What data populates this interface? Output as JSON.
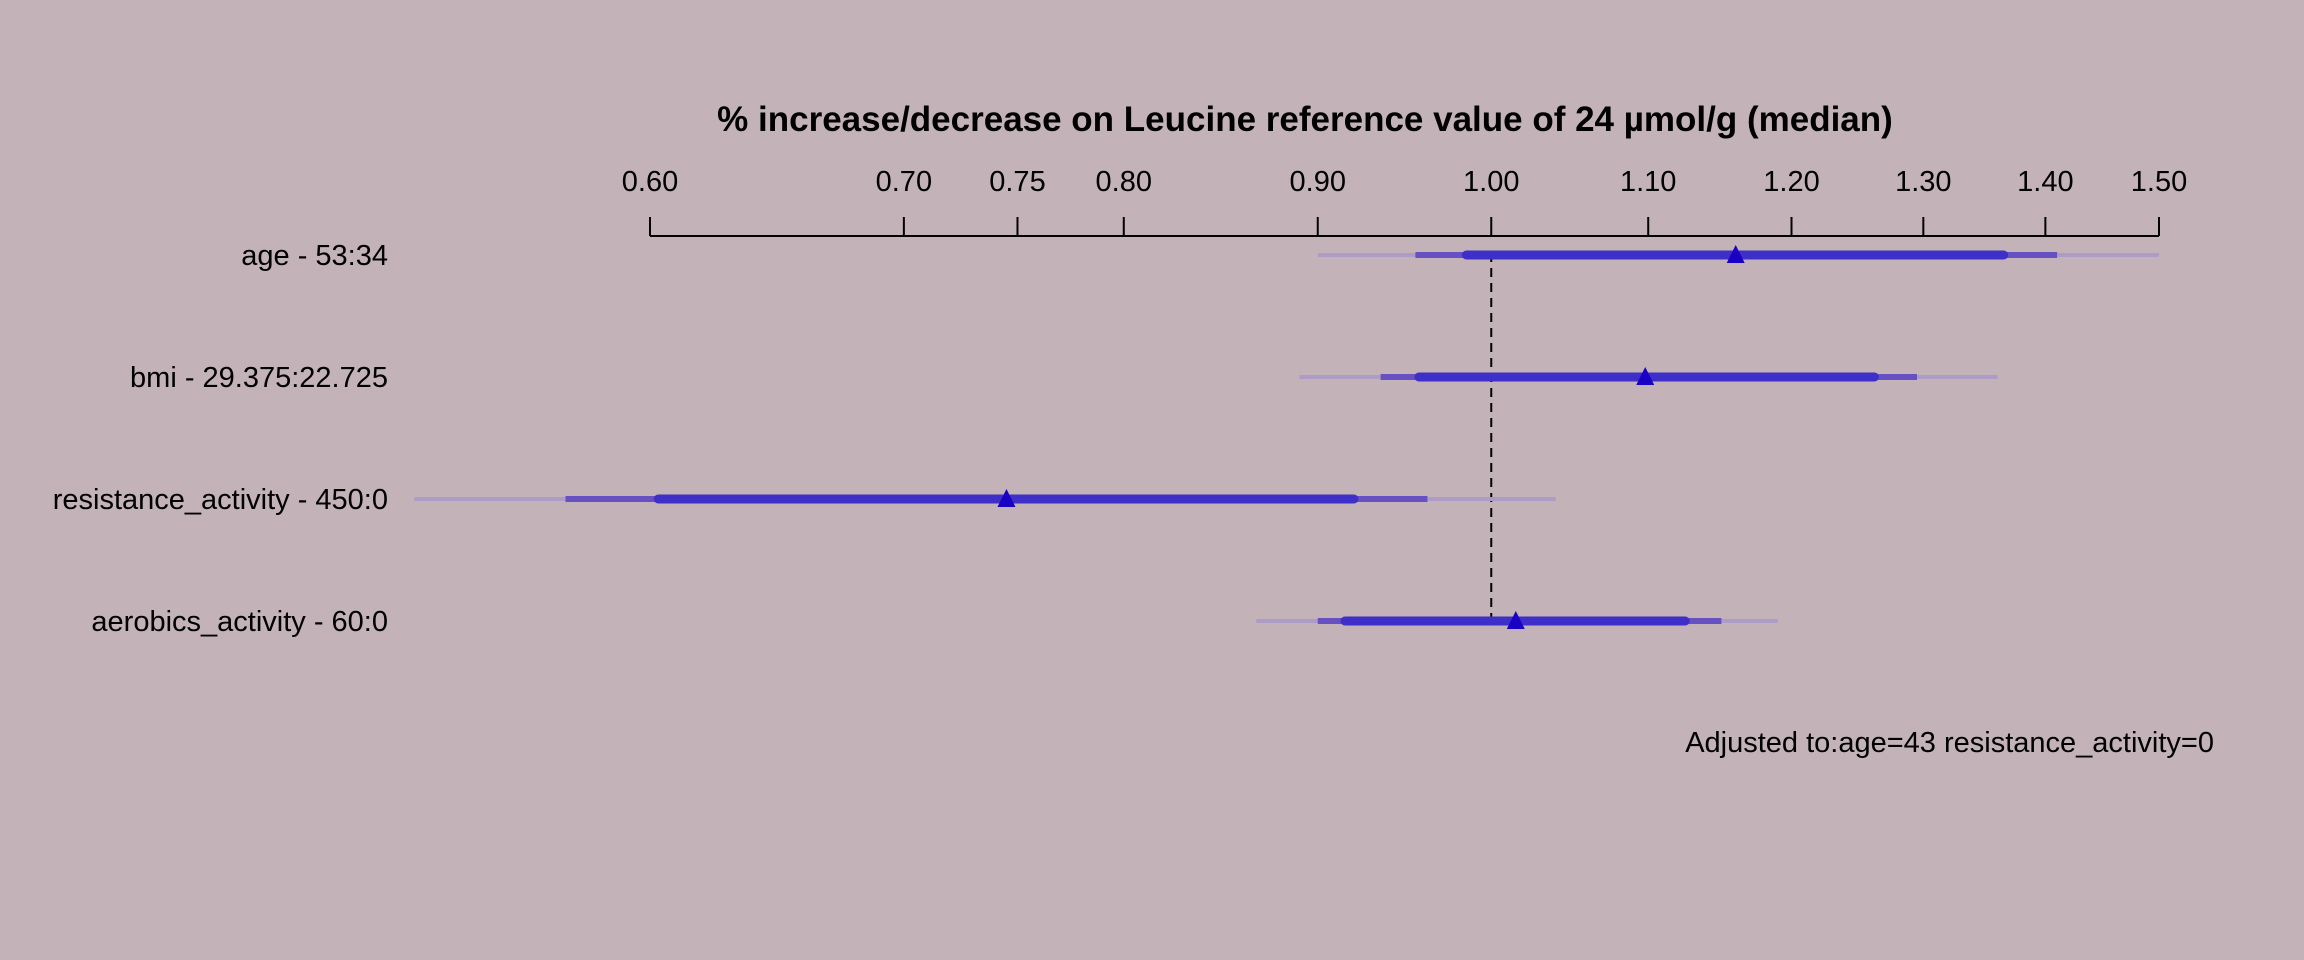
{
  "chart_data": {
    "type": "forest",
    "title": "% increase/decrease on Leucine reference value of 24 µmol/g (median)",
    "x_scale": "log",
    "xlim": [
      0.6,
      1.5
    ],
    "x_ticks": [
      0.6,
      0.7,
      0.75,
      0.8,
      0.9,
      1.0,
      1.1,
      1.2,
      1.3,
      1.4,
      1.5
    ],
    "x_tick_labels": [
      "0.60",
      "0.70",
      "0.75",
      "0.80",
      "0.90",
      "1.00",
      "1.10",
      "1.20",
      "1.30",
      "1.40",
      "1.50"
    ],
    "reference_line": 1.0,
    "colors": {
      "point": "#1a00c4",
      "inner_interval": "#3d2fc8",
      "middle_interval": "#6650c2",
      "outer_interval": "#ad9dc6",
      "reference_line": "#000000"
    },
    "rows": [
      {
        "label": "age - 53:34",
        "estimate": 1.16,
        "inner": [
          0.985,
          1.365
        ],
        "middle": [
          0.955,
          1.41
        ],
        "outer": [
          0.9,
          1.5
        ]
      },
      {
        "label": "bmi - 29.375:22.725",
        "estimate": 1.098,
        "inner": [
          0.957,
          1.262
        ],
        "middle": [
          0.935,
          1.295
        ],
        "outer": [
          0.89,
          1.36
        ]
      },
      {
        "label": "resistance_activity - 450:0",
        "estimate": 0.745,
        "inner": [
          0.603,
          0.92
        ],
        "middle": [
          0.57,
          0.962
        ],
        "outer": [
          0.52,
          1.04
        ]
      },
      {
        "label": "aerobics_activity - 60:0",
        "estimate": 1.015,
        "inner": [
          0.915,
          1.125
        ],
        "middle": [
          0.9,
          1.15
        ],
        "outer": [
          0.867,
          1.19
        ]
      }
    ],
    "note": "Adjusted to:age=43 resistance_activity=0"
  }
}
